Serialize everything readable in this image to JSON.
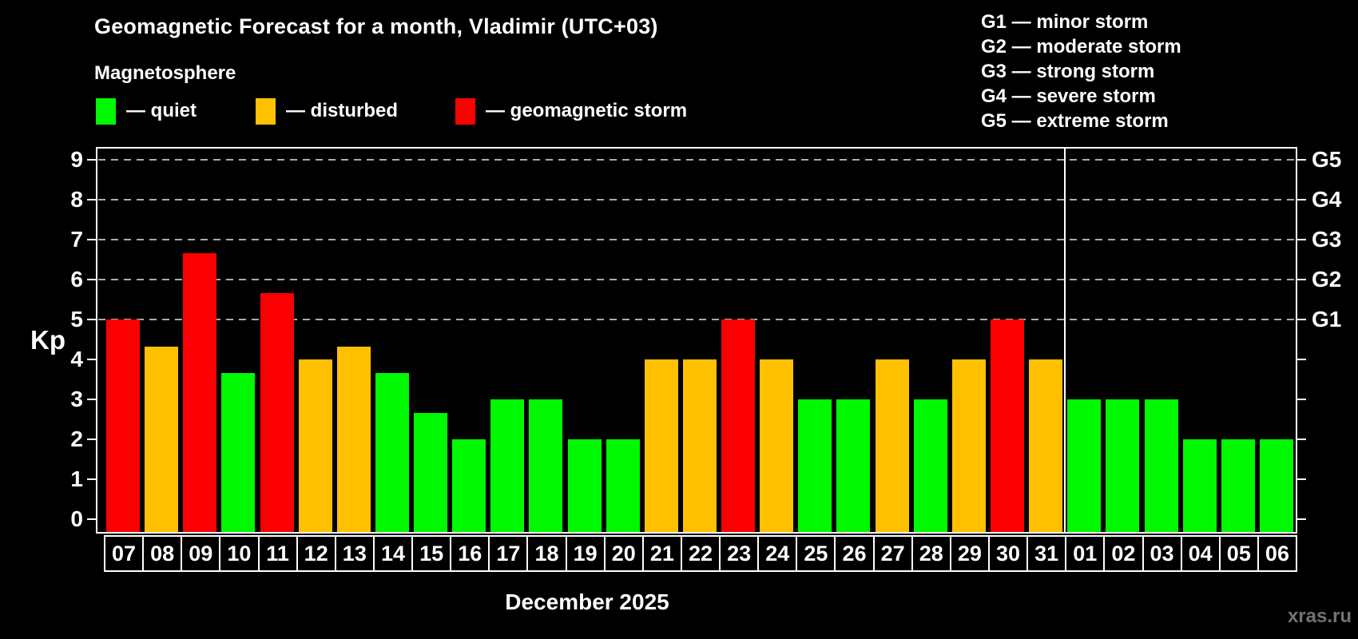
{
  "page": {
    "title": "Geomagnetic Forecast for a month, Vladimir (UTC+03)",
    "subtitle": "Magnetosphere",
    "month_label": "December 2025",
    "watermark": "xras.ru"
  },
  "legend": {
    "items": [
      {
        "key": "quiet",
        "label": "— quiet",
        "color": "#00f800"
      },
      {
        "key": "disturbed",
        "label": "— disturbed",
        "color": "#ffc000"
      },
      {
        "key": "storm",
        "label": "— geomagnetic storm",
        "color": "#fb0000"
      }
    ]
  },
  "g_legend": [
    "G1 — minor storm",
    "G2 — moderate storm",
    "G3 — strong storm",
    "G4 — severe storm",
    "G5 — extreme storm"
  ],
  "chart_data": {
    "type": "bar",
    "title": "Geomagnetic Forecast for a month, Vladimir (UTC+03)",
    "subtitle": "Magnetosphere",
    "xlabel": "December 2025",
    "ylabel": "Kp",
    "ylim": [
      0,
      9
    ],
    "grid": "dashed horizontal at storm levels only",
    "legend_position": "top-left",
    "y_ticks": [
      0,
      1,
      2,
      3,
      4,
      5,
      6,
      7,
      8,
      9
    ],
    "gridlines_at": [
      5,
      6,
      7,
      8,
      9
    ],
    "right_axis_labels": [
      {
        "kp": 5,
        "label": "G1"
      },
      {
        "kp": 6,
        "label": "G2"
      },
      {
        "kp": 7,
        "label": "G3"
      },
      {
        "kp": 8,
        "label": "G4"
      },
      {
        "kp": 9,
        "label": "G5"
      }
    ],
    "categories": [
      "07",
      "08",
      "09",
      "10",
      "11",
      "12",
      "13",
      "14",
      "15",
      "16",
      "17",
      "18",
      "19",
      "20",
      "21",
      "22",
      "23",
      "24",
      "25",
      "26",
      "27",
      "28",
      "29",
      "30",
      "31",
      "01",
      "02",
      "03",
      "04",
      "05",
      "06"
    ],
    "values": [
      5,
      4.33,
      6.67,
      3.67,
      5.67,
      4,
      4.33,
      3.67,
      2.67,
      2,
      3,
      3,
      2,
      2,
      4,
      4,
      5,
      4,
      3,
      3,
      4,
      3,
      4,
      5,
      4,
      3,
      3,
      3,
      2,
      2,
      2
    ],
    "statuses": [
      "storm",
      "disturbed",
      "storm",
      "quiet",
      "storm",
      "disturbed",
      "disturbed",
      "quiet",
      "quiet",
      "quiet",
      "quiet",
      "quiet",
      "quiet",
      "quiet",
      "disturbed",
      "disturbed",
      "storm",
      "disturbed",
      "quiet",
      "quiet",
      "disturbed",
      "quiet",
      "disturbed",
      "storm",
      "disturbed",
      "quiet",
      "quiet",
      "quiet",
      "quiet",
      "quiet",
      "quiet"
    ],
    "colors": {
      "quiet": "#00f800",
      "disturbed": "#ffc000",
      "storm": "#fb0000"
    },
    "month_divider_before_index": 25
  }
}
